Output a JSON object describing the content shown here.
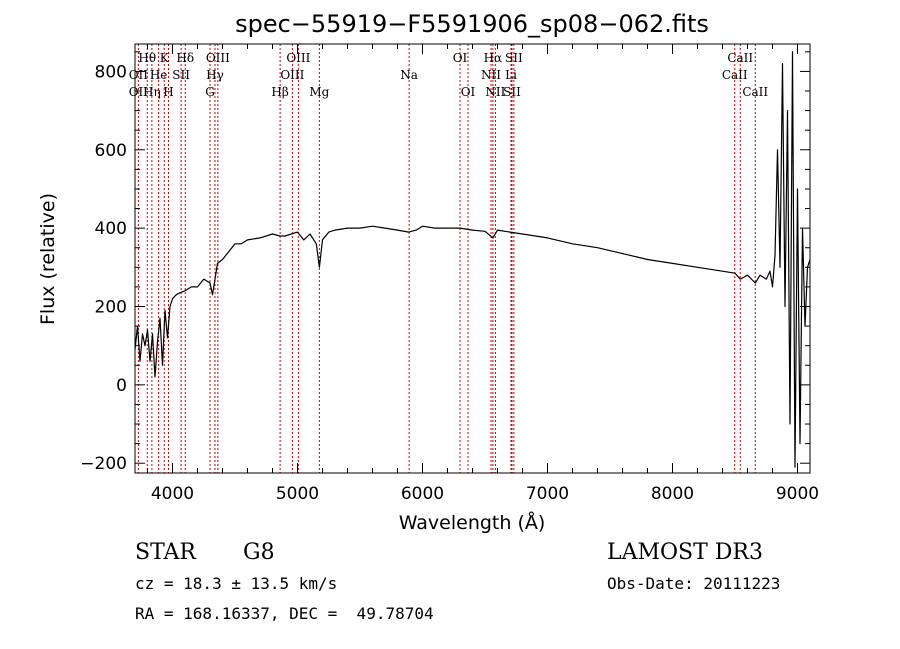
{
  "chart_data": {
    "type": "line",
    "title": "spec−55919−F5591906_sp08−062.fits",
    "xlabel": "Wavelength (Å)",
    "ylabel": "Flux (relative)",
    "xlim": [
      3700,
      9100
    ],
    "ylim": [
      -225,
      870
    ],
    "x_ticks": [
      4000,
      5000,
      6000,
      7000,
      8000,
      9000
    ],
    "x_tick_labels": [
      "4000",
      "5000",
      "6000",
      "7000",
      "8000",
      "9000"
    ],
    "y_ticks": [
      -200,
      0,
      200,
      400,
      600,
      800
    ],
    "y_tick_labels": [
      "−200",
      "0",
      "200",
      "400",
      "600",
      "800"
    ],
    "grid": false,
    "series": [
      {
        "name": "flux",
        "x": [
          3700,
          3720,
          3740,
          3760,
          3780,
          3800,
          3820,
          3840,
          3860,
          3880,
          3900,
          3920,
          3940,
          3960,
          3980,
          4000,
          4030,
          4060,
          4100,
          4150,
          4200,
          4250,
          4300,
          4320,
          4340,
          4360,
          4400,
          4450,
          4500,
          4550,
          4600,
          4700,
          4800,
          4860,
          4900,
          4950,
          5000,
          5050,
          5100,
          5150,
          5175,
          5200,
          5250,
          5300,
          5400,
          5500,
          5600,
          5700,
          5800,
          5890,
          5950,
          6000,
          6100,
          6200,
          6300,
          6400,
          6500,
          6563,
          6600,
          6700,
          6800,
          7000,
          7200,
          7400,
          7600,
          7800,
          8000,
          8200,
          8400,
          8500,
          8542,
          8600,
          8662,
          8700,
          8750,
          8780,
          8800,
          8820,
          8840,
          8860,
          8880,
          8900,
          8920,
          8940,
          8960,
          8980,
          9000,
          9020,
          9040,
          9060,
          9080,
          9100
        ],
        "y": [
          90,
          150,
          60,
          130,
          100,
          140,
          60,
          130,
          20,
          110,
          170,
          50,
          190,
          120,
          200,
          220,
          230,
          235,
          240,
          250,
          250,
          270,
          260,
          230,
          270,
          310,
          320,
          340,
          360,
          360,
          370,
          375,
          385,
          380,
          380,
          385,
          390,
          370,
          385,
          360,
          300,
          370,
          390,
          395,
          400,
          400,
          405,
          400,
          395,
          390,
          395,
          405,
          400,
          400,
          400,
          395,
          392,
          375,
          395,
          390,
          385,
          375,
          360,
          350,
          335,
          320,
          310,
          300,
          290,
          285,
          270,
          280,
          260,
          280,
          270,
          290,
          250,
          330,
          600,
          300,
          820,
          200,
          700,
          -100,
          850,
          -210,
          500,
          -150,
          400,
          150,
          300,
          320
        ]
      }
    ],
    "annotations": [
      {
        "label": "Hθ",
        "x": 3798,
        "row": 1
      },
      {
        "label": "OII",
        "x": 3727,
        "row": 2
      },
      {
        "label": "OII",
        "x": 3727,
        "row": 3
      },
      {
        "label": "He",
        "x": 3889,
        "row": 2
      },
      {
        "label": "Hη",
        "x": 3835,
        "row": 3
      },
      {
        "label": "K",
        "x": 3934,
        "row": 1
      },
      {
        "label": "H",
        "x": 3968,
        "row": 3
      },
      {
        "label": "SII",
        "x": 4069,
        "row": 2
      },
      {
        "label": "Hδ",
        "x": 4102,
        "row": 1
      },
      {
        "label": "OIII",
        "x": 4363,
        "row": 1
      },
      {
        "label": "Hγ",
        "x": 4340,
        "row": 2
      },
      {
        "label": "G",
        "x": 4300,
        "row": 3
      },
      {
        "label": "Hβ",
        "x": 4861,
        "row": 3
      },
      {
        "label": "OIII",
        "x": 5007,
        "row": 1
      },
      {
        "label": "OIII",
        "x": 4959,
        "row": 2
      },
      {
        "label": "Mg",
        "x": 5175,
        "row": 3
      },
      {
        "label": "Na",
        "x": 5893,
        "row": 2
      },
      {
        "label": "OI",
        "x": 6300,
        "row": 1
      },
      {
        "label": "OI",
        "x": 6364,
        "row": 3
      },
      {
        "label": "Hα",
        "x": 6563,
        "row": 1
      },
      {
        "label": "SII",
        "x": 6731,
        "row": 1
      },
      {
        "label": "NII",
        "x": 6548,
        "row": 2
      },
      {
        "label": "Li",
        "x": 6708,
        "row": 2
      },
      {
        "label": "NII",
        "x": 6583,
        "row": 3
      },
      {
        "label": "SII",
        "x": 6716,
        "row": 3
      },
      {
        "label": "CaII",
        "x": 8542,
        "row": 1
      },
      {
        "label": "CaII",
        "x": 8498,
        "row": 2
      },
      {
        "label": "CaII",
        "x": 8662,
        "row": 3
      }
    ],
    "line_markers": [
      3727,
      3798,
      3835,
      3889,
      3934,
      3968,
      4069,
      4102,
      4300,
      4340,
      4363,
      4861,
      4959,
      5007,
      5175,
      5893,
      6300,
      6364,
      6548,
      6563,
      6583,
      6708,
      6716,
      6731,
      8498,
      8542,
      8662
    ]
  },
  "info": {
    "object_class": "STAR",
    "subclass": "G8",
    "survey": "LAMOST DR3",
    "cz": "cz = 18.3 ± 13.5 km/s",
    "obs_date": "Obs-Date: 20111223",
    "coords": "RA = 168.16337, DEC =  49.78704"
  },
  "colors": {
    "line": "#000000",
    "marker": "#cc0000",
    "axes": "#000000"
  }
}
